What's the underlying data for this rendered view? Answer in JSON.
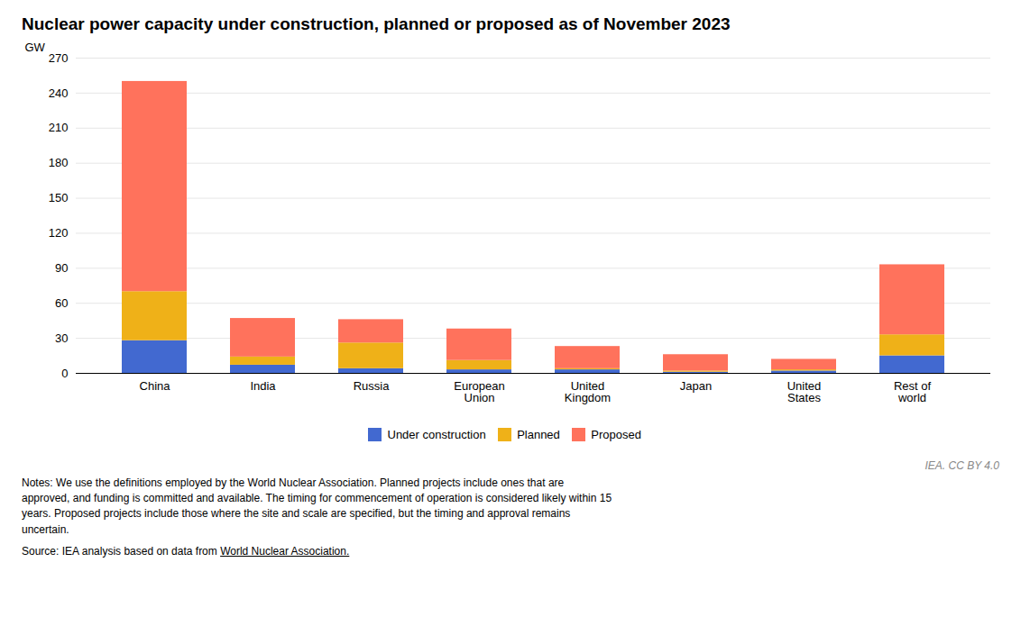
{
  "chart_data": {
    "type": "bar",
    "stacked": true,
    "title": "Nuclear power capacity under construction, planned or proposed as of November 2023",
    "ylabel": "GW",
    "categories": [
      "China",
      "India",
      "Russia",
      "European\nUnion",
      "United\nKingdom",
      "Japan",
      "United\nStates",
      "Rest of\nworld"
    ],
    "series": [
      {
        "name": "Under construction",
        "values": [
          28,
          7,
          4,
          3,
          3,
          1,
          2,
          15
        ]
      },
      {
        "name": "Planned",
        "values": [
          42,
          7,
          22,
          8,
          1,
          1,
          1,
          18
        ]
      },
      {
        "name": "Proposed",
        "values": [
          180,
          33,
          20,
          27,
          19,
          14,
          9,
          60
        ]
      }
    ],
    "ylim": [
      0,
      270
    ],
    "yticks": [
      0,
      30,
      60,
      90,
      120,
      150,
      180,
      210,
      240,
      270
    ],
    "grid": true,
    "legend": "bottom",
    "annotations": [
      "IEA. CC BY 4.0",
      "Notes: We use the definitions employed by the World Nuclear Association. Planned projects include ones that are\napproved, and funding is committed and available. The timing for commencement of operation is considered likely within 15\nyears. Proposed projects include those where the site and scale are specified, but the timing and approval remains\nuncertain.",
      "Source: IEA analysis based on data from ",
      "World Nuclear Association."
    ]
  }
}
